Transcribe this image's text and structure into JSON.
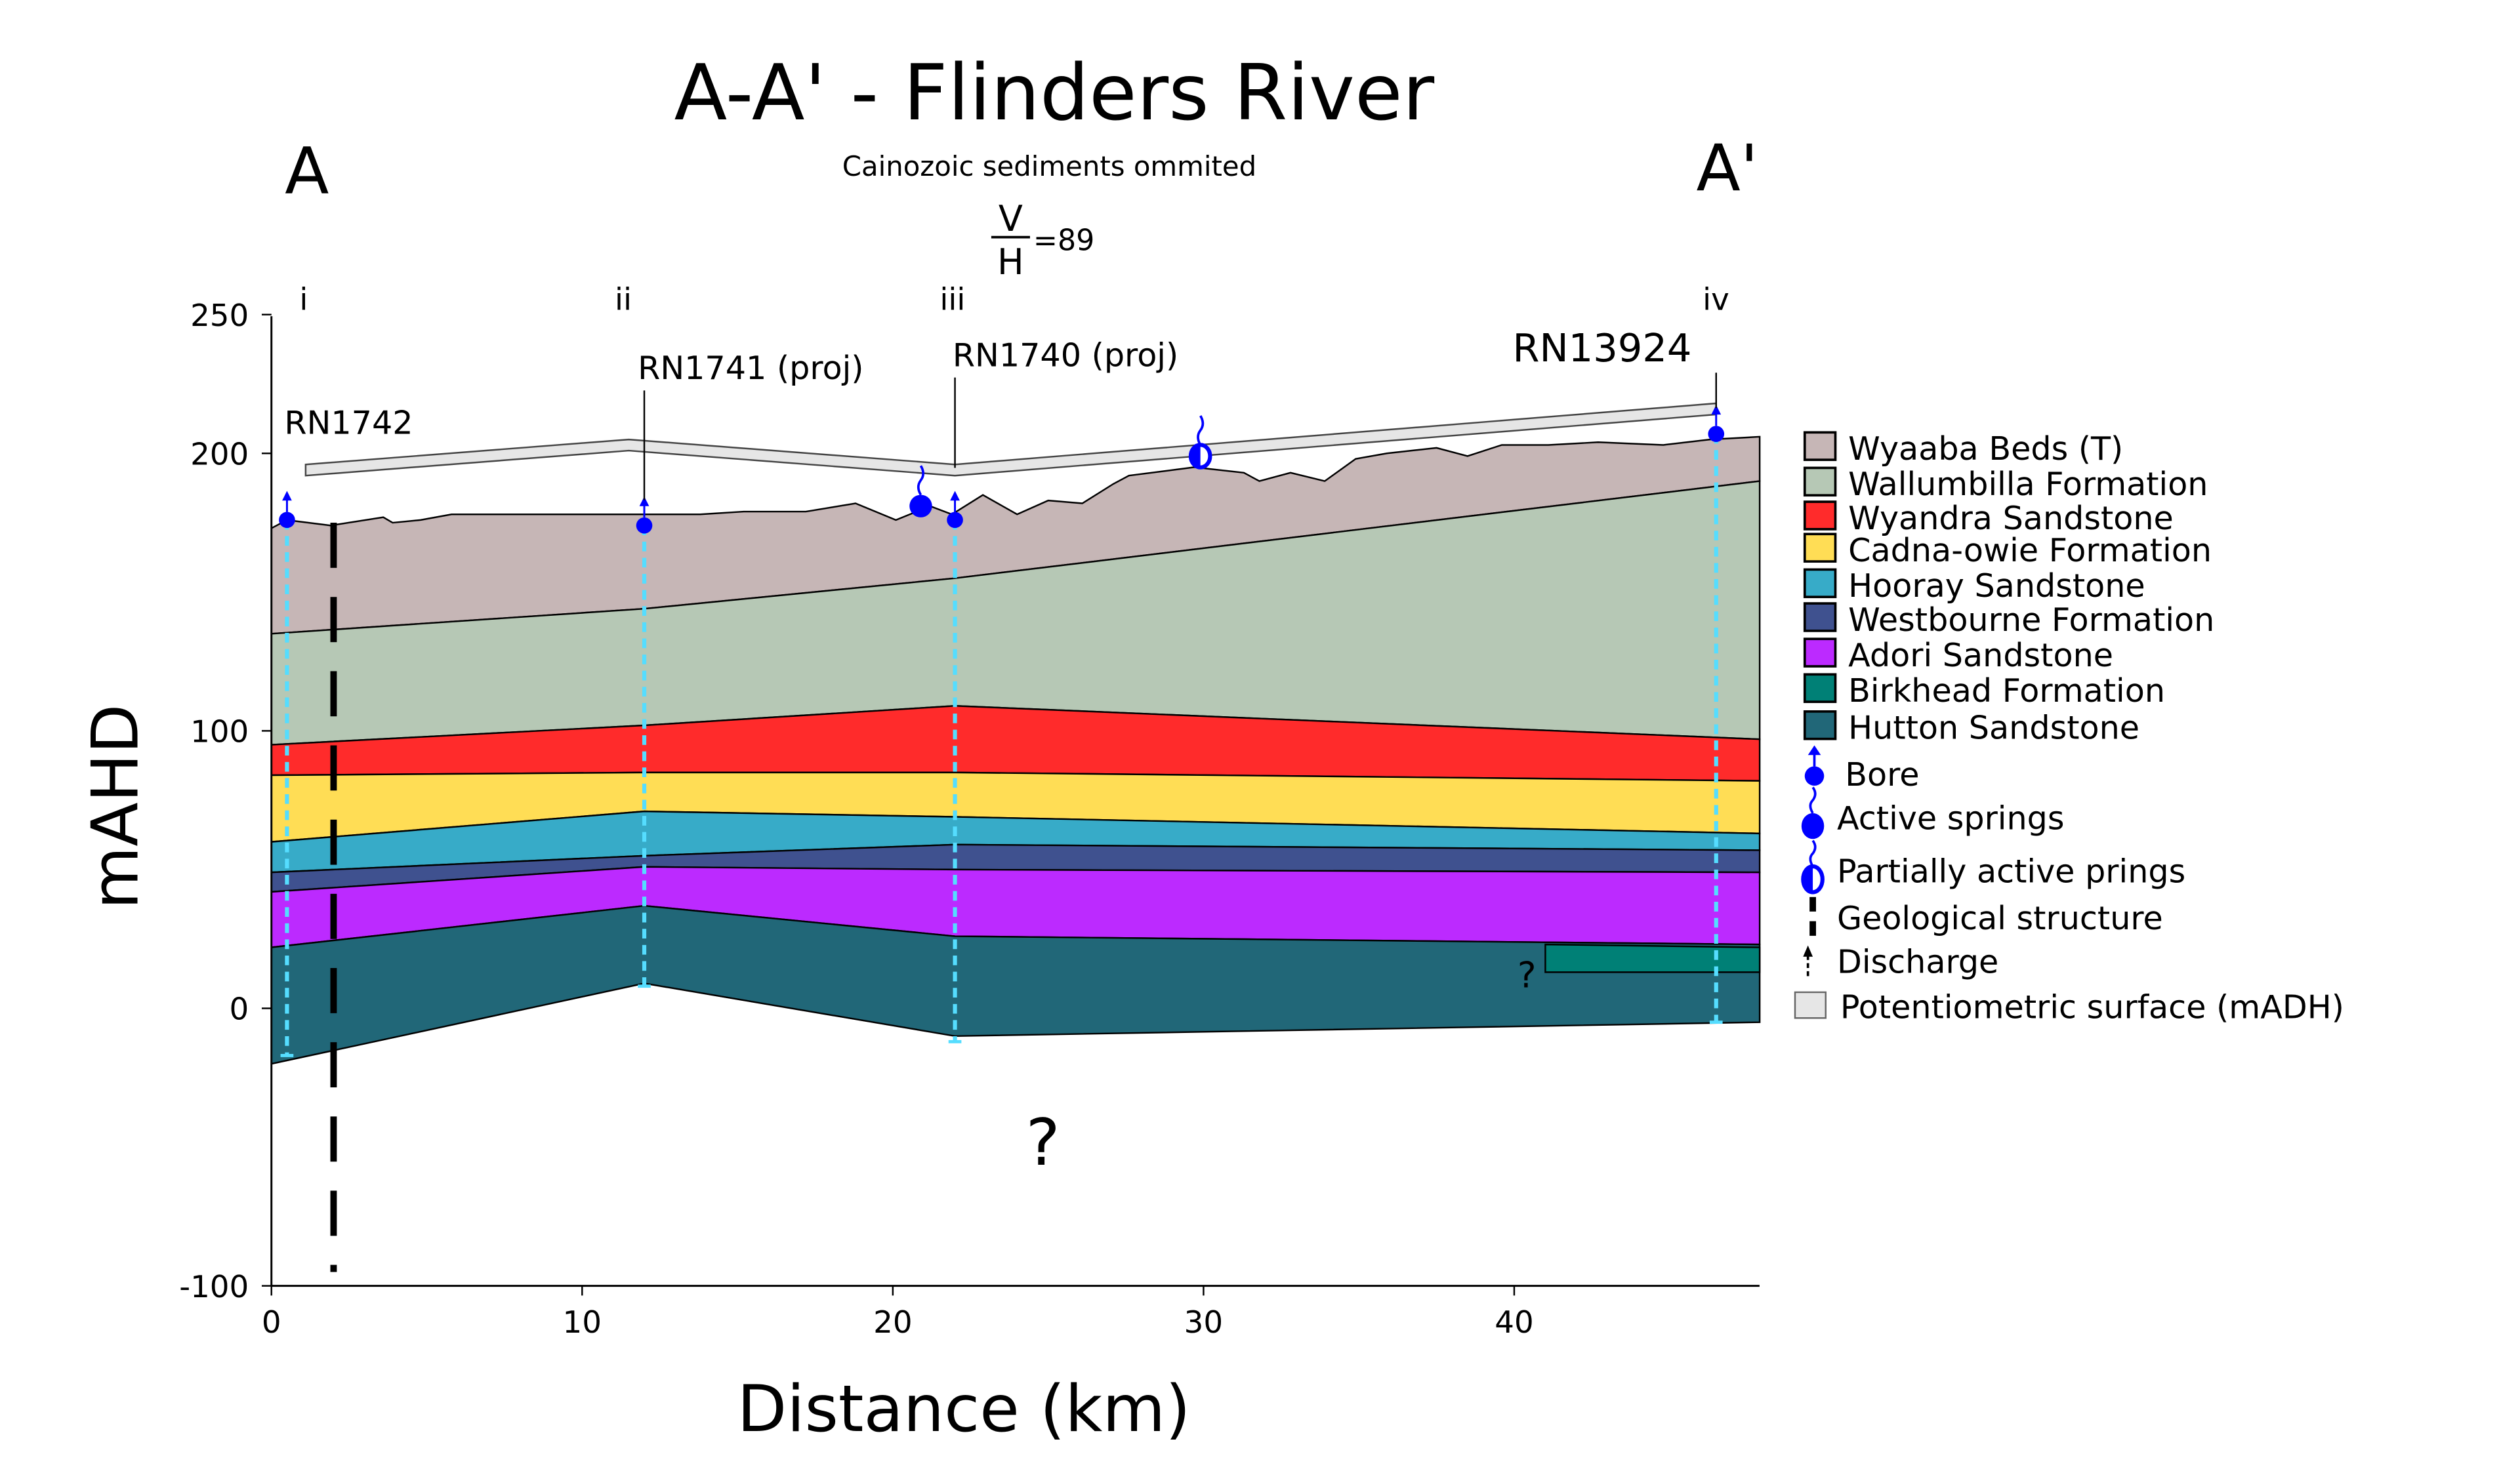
{
  "title": "A-A' - Flinders River",
  "subtitle": "Cainozoic sediments ommited",
  "end_left": "A",
  "end_right": "A'",
  "ratio": {
    "num": "V",
    "den": "H",
    "value": "=89"
  },
  "question_marks": [
    "?",
    "?"
  ],
  "chart_data": {
    "type": "cross-section",
    "xlabel": "Distance (km)",
    "ylabel": "mAHD",
    "xlim": [
      0,
      48
    ],
    "ylim": [
      -100,
      250
    ],
    "xticks": [
      "0",
      "10",
      "20",
      "30",
      "40"
    ],
    "xtick_values": [
      0,
      10,
      20,
      30,
      40
    ],
    "yticks": [
      "250",
      "200",
      "100",
      "0",
      "-100"
    ],
    "ytick_values": [
      250,
      200,
      100,
      0,
      -100
    ],
    "ground_surface": [
      [
        0,
        173
      ],
      [
        0.5,
        176
      ],
      [
        1.9,
        174
      ],
      [
        3.6,
        177
      ],
      [
        3.9,
        175
      ],
      [
        4.8,
        176
      ],
      [
        5.8,
        178
      ],
      [
        6.9,
        178
      ],
      [
        8.4,
        178
      ],
      [
        10,
        178
      ],
      [
        12,
        178
      ],
      [
        13.8,
        178
      ],
      [
        15.2,
        179
      ],
      [
        17.2,
        179
      ],
      [
        18.8,
        182
      ],
      [
        20.1,
        176
      ],
      [
        21.2,
        181
      ],
      [
        21.9,
        178
      ],
      [
        22.9,
        185
      ],
      [
        24,
        178
      ],
      [
        25,
        183
      ],
      [
        26.1,
        182
      ],
      [
        27.1,
        189
      ],
      [
        27.6,
        192
      ],
      [
        29.7,
        195
      ],
      [
        31.3,
        193
      ],
      [
        31.8,
        190
      ],
      [
        32.8,
        193
      ],
      [
        33.9,
        190
      ],
      [
        34.9,
        198
      ],
      [
        35.9,
        200
      ],
      [
        37.5,
        202
      ],
      [
        38.5,
        199
      ],
      [
        39.6,
        203
      ],
      [
        41.1,
        203
      ],
      [
        42.7,
        204
      ],
      [
        44.8,
        203
      ],
      [
        46.3,
        205
      ],
      [
        47.9,
        206
      ]
    ],
    "boundary_x": [
      0,
      12,
      22,
      47.9
    ],
    "boundaries": {
      "wyaaba_base": [
        135,
        144,
        155,
        190
      ],
      "wallumbilla_base": [
        95,
        102,
        109,
        97
      ],
      "wyandra_base": [
        84,
        85,
        85,
        82
      ],
      "cadna_base": [
        60,
        71,
        69,
        63
      ],
      "hooray_base": [
        49,
        55,
        59,
        57
      ],
      "westbourne_base": [
        42,
        51,
        50,
        49
      ],
      "adori_base": [
        22,
        37,
        26,
        23
      ],
      "hutton_base": [
        -20,
        9,
        -10,
        -5
      ]
    },
    "birkhead": {
      "x": [
        41,
        47.9
      ],
      "top": [
        23,
        22
      ],
      "base": [
        13,
        13
      ]
    },
    "potentiometric_surface": [
      [
        1.1,
        196
      ],
      [
        11.5,
        205
      ],
      [
        22,
        196
      ],
      [
        46.5,
        218
      ]
    ],
    "bores": [
      {
        "roman": "i",
        "label": "RN1742",
        "x": 0.5,
        "top": 176,
        "bottom": -17
      },
      {
        "roman": "ii",
        "label": "RN1741 (proj)",
        "x": 12,
        "top": 174,
        "bottom": 8
      },
      {
        "roman": "iii",
        "label": "RN1740 (proj)",
        "x": 22,
        "top": 176,
        "bottom": -12
      },
      {
        "roman": "iv",
        "label": "RN13924",
        "x": 46.5,
        "top": 207,
        "bottom": -5
      }
    ],
    "active_spring": {
      "x": 20.9,
      "y": 181
    },
    "partial_spring": {
      "x": 29.9,
      "y": 199
    },
    "geological_structure": {
      "x": 2.0,
      "top": 175,
      "bottom": -95
    }
  },
  "layers": [
    {
      "name": "Wyaaba Beds (T)",
      "color": "#c6b6b6"
    },
    {
      "name": "Wallumbilla Formation",
      "color": "#b6c8b5"
    },
    {
      "name": "Wyandra Sandstone",
      "color": "#ff2b2b"
    },
    {
      "name": "Cadna-owie Formation",
      "color": "#ffdd55"
    },
    {
      "name": "Hooray Sandstone",
      "color": "#37abc8"
    },
    {
      "name": "Westbourne Formation",
      "color": "#3f518f"
    },
    {
      "name": "Adori Sandstone",
      "color": "#bc2aff"
    },
    {
      "name": "Birkhead Formation",
      "color": "#008076"
    },
    {
      "name": "Hutton Sandstone",
      "color": "#216778"
    }
  ],
  "legend_symbols": {
    "bore": "Bore",
    "active": "Active springs",
    "partial": "Partially active prings",
    "structure": "Geological structure",
    "discharge": "Discharge",
    "potentiometric": "Potentiometric surface (mADH)"
  },
  "colors": {
    "bore": "#0000ff",
    "discharge_line": "#55ddff",
    "potentiometric": "#e6e6e6"
  }
}
